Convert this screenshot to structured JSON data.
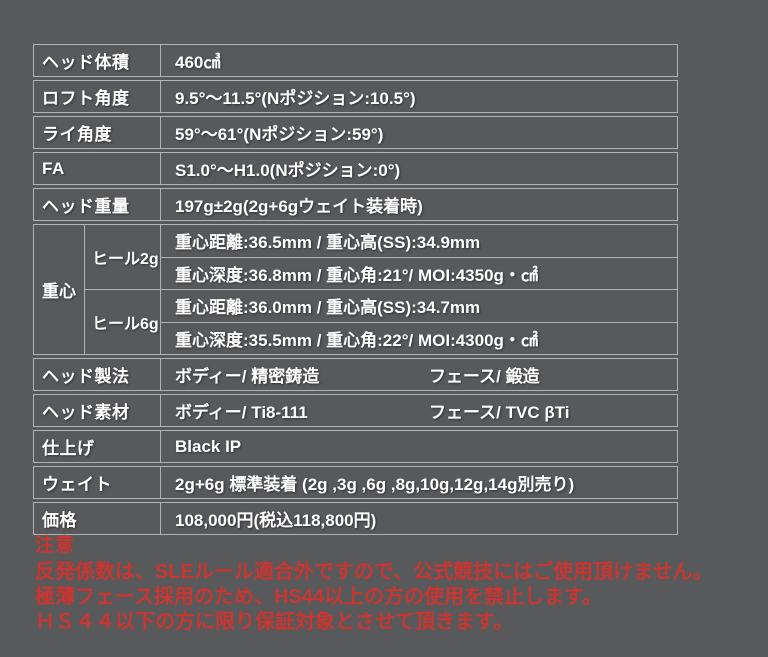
{
  "colors": {
    "background": "#58595b",
    "border": "#b0b2b4",
    "text": "#ffffff",
    "note_red": "#c93530"
  },
  "table": {
    "rows": [
      {
        "label": "ヘッド体積",
        "value": "460㎤"
      },
      {
        "label": "ロフト角度",
        "value": "9.5°～11.5°(Nポジション:10.5°)"
      },
      {
        "label": "ライ角度",
        "value": "59°～61°(Nポジション:59°)"
      },
      {
        "label": "FA",
        "value": "S1.0°～H1.0(Nポジション:0°)"
      },
      {
        "label": "ヘッド重量",
        "value": "197g±2g(2g+6gウェイト装着時)"
      }
    ],
    "center_of_gravity": {
      "label": "重心",
      "groups": [
        {
          "sub_label": "ヒール2g",
          "line1": "重心距離:36.5mm / 重心高(SS):34.9mm",
          "line2": "重心深度:36.8mm / 重心角:21°/ MOI:4350g・㎠"
        },
        {
          "sub_label": "ヒール6g",
          "line1": "重心距離:36.0mm / 重心高(SS):34.7mm",
          "line2": "重心深度:35.5mm / 重心角:22°/ MOI:4300g・㎠"
        }
      ]
    },
    "rows2": [
      {
        "label": "ヘッド製法",
        "value1": "ボディー/ 精密鋳造",
        "value2": "フェース/ 鍛造"
      },
      {
        "label": "ヘッド素材",
        "value1": "ボディー/ Ti8-111",
        "value2": "フェース/ TVC βTi"
      },
      {
        "label": "仕上げ",
        "value": "Black IP"
      },
      {
        "label": "ウェイト",
        "value": "2g+6g 標準装着 (2g ,3g ,6g ,8g,10g,12g,14g別売り)"
      },
      {
        "label": "価格",
        "value": "108,000円(税込118,800円)"
      }
    ]
  },
  "notes": {
    "title": "注意",
    "lines": [
      "反発係数は、SLEルール適合外ですので、公式競技にはご使用頂けません。",
      "極薄フェース採用のため、HS44以上の方の使用を禁止します。",
      "ＨＳ４４以下の方に限り保証対象とさせて頂きます。"
    ]
  }
}
